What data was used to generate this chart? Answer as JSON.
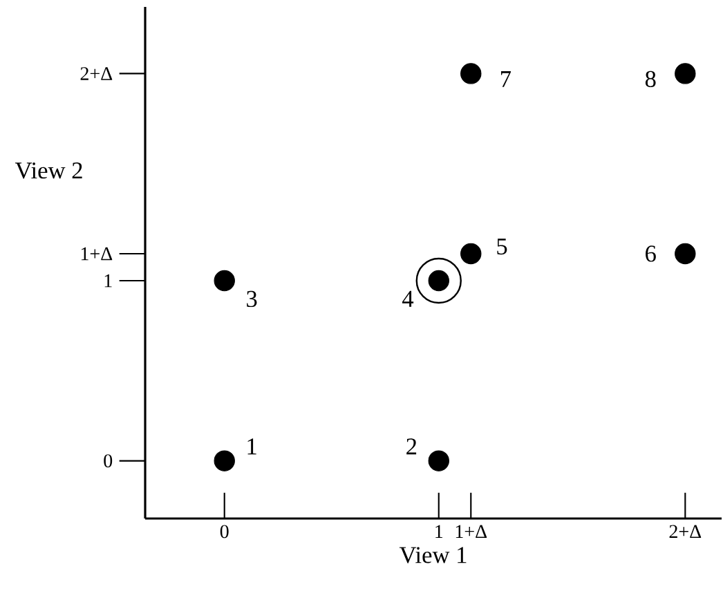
{
  "chart_data": {
    "type": "scatter",
    "xlabel": "View 1",
    "ylabel": "View 2",
    "xlim": [
      -0.37,
      2.32
    ],
    "ylim": [
      -0.32,
      2.52
    ],
    "xticks": [
      0,
      1,
      {
        "value": 1.15,
        "label": "1+Δ"
      },
      {
        "value": 2.15,
        "label": "2+Δ"
      }
    ],
    "yticks": [
      0,
      1,
      {
        "value": 1.15,
        "label": "1+Δ"
      },
      {
        "value": 2.15,
        "label": "2+Δ"
      }
    ],
    "series": [
      {
        "x": [
          0,
          1,
          0,
          1,
          1.15,
          2.15,
          1.15,
          2.15
        ],
        "values": [
          0,
          0,
          1,
          1,
          1.15,
          1.15,
          2.15,
          2.15
        ],
        "color": "#000000",
        "marker": "circle"
      },
      {
        "x": [
          1
        ],
        "values": [
          1
        ],
        "color": "#000000",
        "marker": "circle"
      }
    ],
    "annotations": [
      {
        "text": "1",
        "x": 0,
        "y": 0
      },
      {
        "text": "2",
        "x": 1,
        "y": 0
      },
      {
        "text": "3",
        "x": 0,
        "y": 1
      },
      {
        "text": "4",
        "x": 1,
        "y": 1
      },
      {
        "text": "5",
        "x": 1.15,
        "y": 1.15
      },
      {
        "text": "6",
        "x": 2.15,
        "y": 1.15
      },
      {
        "text": "7",
        "x": 1.15,
        "y": 2.15
      },
      {
        "text": "8",
        "x": 2.15,
        "y": 2.15
      }
    ],
    "grid": false
  }
}
